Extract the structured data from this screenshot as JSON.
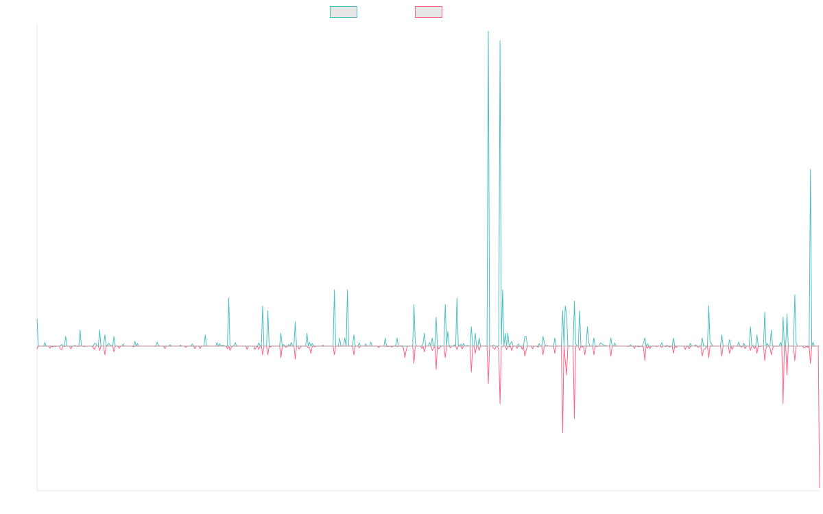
{
  "chart_data": {
    "type": "line",
    "title": "",
    "xlabel": "",
    "ylabel": "",
    "grid": false,
    "legend_placement": "top-center",
    "ylim": [
      -1.0,
      2.0
    ],
    "x_count": 600,
    "series": [
      {
        "color": "#4bc0c0",
        "fill": "#e6e6e6",
        "peaks": [
          [
            0,
            0.17
          ],
          [
            22,
            0.06
          ],
          [
            33,
            0.1
          ],
          [
            48,
            0.1
          ],
          [
            52,
            0.07
          ],
          [
            59,
            0.06
          ],
          [
            75,
            0.03
          ],
          [
            129,
            0.07
          ],
          [
            147,
            0.3
          ],
          [
            173,
            0.25
          ],
          [
            177,
            0.22
          ],
          [
            187,
            0.08
          ],
          [
            198,
            0.15
          ],
          [
            207,
            0.08
          ],
          [
            228,
            0.35
          ],
          [
            232,
            0.05
          ],
          [
            236,
            0.05
          ],
          [
            238,
            0.35
          ],
          [
            243,
            0.07
          ],
          [
            267,
            0.05
          ],
          [
            276,
            0.05
          ],
          [
            289,
            0.26
          ],
          [
            297,
            0.08
          ],
          [
            303,
            0.05
          ],
          [
            306,
            0.18
          ],
          [
            313,
            0.26
          ],
          [
            315,
            0.09
          ],
          [
            322,
            0.3
          ],
          [
            333,
            0.12
          ],
          [
            336,
            0.08
          ],
          [
            339,
            0.05
          ],
          [
            346,
            1.96
          ],
          [
            355,
            1.9
          ],
          [
            357,
            0.35
          ],
          [
            359,
            0.08
          ],
          [
            361,
            0.08
          ],
          [
            364,
            0.03
          ],
          [
            374,
            0.06
          ],
          [
            375,
            0.06
          ],
          [
            388,
            0.06
          ],
          [
            397,
            0.05
          ],
          [
            403,
            0.22
          ],
          [
            405,
            0.25
          ],
          [
            406,
            0.2
          ],
          [
            412,
            0.28
          ],
          [
            416,
            0.22
          ],
          [
            422,
            0.12
          ],
          [
            427,
            0.05
          ],
          [
            440,
            0.05
          ],
          [
            466,
            0.05
          ],
          [
            488,
            0.05
          ],
          [
            510,
            0.05
          ],
          [
            515,
            0.25
          ],
          [
            525,
            0.07
          ],
          [
            531,
            0.04
          ],
          [
            547,
            0.12
          ],
          [
            552,
            0.07
          ],
          [
            558,
            0.21
          ],
          [
            563,
            0.1
          ],
          [
            572,
            0.18
          ],
          [
            575,
            0.2
          ],
          [
            581,
            0.32
          ],
          [
            593,
            1.1
          ]
        ]
      },
      {
        "color": "#ff6384",
        "fill": "#e6e6e6",
        "peaks": [
          [
            0,
            -0.02
          ],
          [
            26,
            -0.02
          ],
          [
            48,
            -0.03
          ],
          [
            52,
            -0.06
          ],
          [
            59,
            -0.04
          ],
          [
            148,
            -0.03
          ],
          [
            173,
            -0.06
          ],
          [
            177,
            -0.06
          ],
          [
            187,
            -0.08
          ],
          [
            198,
            -0.09
          ],
          [
            210,
            -0.05
          ],
          [
            228,
            -0.06
          ],
          [
            243,
            -0.06
          ],
          [
            282,
            -0.08
          ],
          [
            283,
            -0.03
          ],
          [
            289,
            -0.12
          ],
          [
            297,
            -0.04
          ],
          [
            303,
            -0.03
          ],
          [
            306,
            -0.16
          ],
          [
            313,
            -0.08
          ],
          [
            333,
            -0.18
          ],
          [
            336,
            -0.05
          ],
          [
            339,
            -0.03
          ],
          [
            346,
            -0.26
          ],
          [
            355,
            -0.4
          ],
          [
            364,
            -0.03
          ],
          [
            374,
            -0.07
          ],
          [
            375,
            -0.03
          ],
          [
            388,
            -0.06
          ],
          [
            397,
            -0.05
          ],
          [
            403,
            -0.6
          ],
          [
            405,
            -0.1
          ],
          [
            406,
            -0.2
          ],
          [
            412,
            -0.5
          ],
          [
            416,
            -0.03
          ],
          [
            420,
            -0.06
          ],
          [
            427,
            -0.06
          ],
          [
            440,
            -0.07
          ],
          [
            466,
            -0.1
          ],
          [
            488,
            -0.05
          ],
          [
            510,
            -0.07
          ],
          [
            515,
            -0.08
          ],
          [
            525,
            -0.07
          ],
          [
            531,
            -0.05
          ],
          [
            547,
            -0.03
          ],
          [
            552,
            -0.05
          ],
          [
            558,
            -0.1
          ],
          [
            563,
            -0.06
          ],
          [
            572,
            -0.4
          ],
          [
            575,
            -0.2
          ],
          [
            581,
            -0.1
          ],
          [
            593,
            -0.12
          ],
          [
            600,
            -0.98
          ]
        ]
      }
    ]
  }
}
